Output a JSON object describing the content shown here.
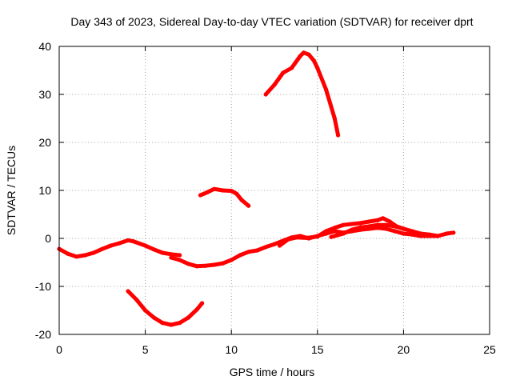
{
  "chart_data": {
    "type": "scatter",
    "title": "Day 343 of 2023, Sidereal Day-to-day VTEC variation (SDTVAR) for receiver dprt",
    "xlabel": "GPS time / hours",
    "ylabel": "SDTVAR / TECUs",
    "xlim": [
      0,
      25
    ],
    "ylim": [
      -20,
      40
    ],
    "xticks": [
      0,
      5,
      10,
      15,
      20,
      25
    ],
    "yticks": [
      -20,
      -10,
      0,
      10,
      20,
      30,
      40
    ],
    "grid": true,
    "legend": "none",
    "series_color": "#ff0000",
    "series": [
      {
        "name": "track-main-a",
        "points": [
          [
            0,
            -2.2
          ],
          [
            0.5,
            -3.2
          ],
          [
            1,
            -3.8
          ],
          [
            1.5,
            -3.5
          ],
          [
            2,
            -3
          ],
          [
            2.5,
            -2.2
          ],
          [
            3,
            -1.5
          ],
          [
            3.5,
            -1
          ],
          [
            4,
            -0.4
          ],
          [
            4.3,
            -0.6
          ],
          [
            5,
            -1.5
          ],
          [
            5.5,
            -2.3
          ],
          [
            6,
            -3
          ],
          [
            6.5,
            -3.3
          ],
          [
            7,
            -3.5
          ]
        ]
      },
      {
        "name": "track-main-b",
        "points": [
          [
            6.5,
            -4
          ],
          [
            7,
            -4.5
          ],
          [
            7.5,
            -5.3
          ],
          [
            8,
            -5.8
          ],
          [
            8.5,
            -5.7
          ],
          [
            9,
            -5.5
          ],
          [
            9.5,
            -5.2
          ],
          [
            10,
            -4.5
          ],
          [
            10.5,
            -3.5
          ],
          [
            11,
            -2.8
          ],
          [
            11.5,
            -2.5
          ],
          [
            12,
            -1.8
          ],
          [
            12.5,
            -1.2
          ],
          [
            13,
            -0.5
          ],
          [
            13.5,
            0.2
          ],
          [
            14,
            0.5
          ],
          [
            14.5,
            0
          ],
          [
            15,
            0.5
          ],
          [
            15.5,
            1
          ],
          [
            16,
            1.5
          ],
          [
            16.5,
            1.2
          ],
          [
            17,
            1.5
          ],
          [
            17.5,
            1.8
          ],
          [
            18,
            2
          ],
          [
            18.5,
            2.2
          ],
          [
            19,
            2
          ],
          [
            19.5,
            1.5
          ],
          [
            20,
            1
          ],
          [
            20.5,
            0.8
          ],
          [
            21,
            0.5
          ],
          [
            21.5,
            0.5
          ],
          [
            22,
            0.5
          ],
          [
            22.5,
            1
          ],
          [
            22.9,
            1.2
          ]
        ]
      },
      {
        "name": "track-main-c",
        "points": [
          [
            12.8,
            -1.5
          ],
          [
            13.3,
            -0.2
          ],
          [
            13.8,
            0.2
          ],
          [
            14.4,
            0.1
          ],
          [
            15,
            0.4
          ],
          [
            15.5,
            1.5
          ],
          [
            16,
            2.2
          ],
          [
            16.5,
            2.8
          ],
          [
            17,
            3
          ],
          [
            17.5,
            3.2
          ],
          [
            18,
            3.5
          ],
          [
            18.5,
            3.8
          ],
          [
            18.8,
            4.2
          ],
          [
            19.2,
            3.5
          ],
          [
            19.6,
            2.5
          ],
          [
            20,
            2
          ],
          [
            20.5,
            1.5
          ],
          [
            21,
            1
          ],
          [
            21.5,
            0.8
          ],
          [
            22,
            0.5
          ]
        ]
      },
      {
        "name": "track-main-d",
        "points": [
          [
            15.8,
            0.3
          ],
          [
            16.5,
            1
          ],
          [
            17,
            1.8
          ],
          [
            17.5,
            2.3
          ],
          [
            18,
            2.5
          ],
          [
            18.5,
            2.8
          ],
          [
            19,
            2.8
          ],
          [
            19.5,
            2.5
          ],
          [
            20,
            2
          ]
        ]
      },
      {
        "name": "track-upper-arc",
        "points": [
          [
            12,
            30
          ],
          [
            12.5,
            32
          ],
          [
            13,
            34.5
          ],
          [
            13.5,
            35.5
          ],
          [
            14,
            38
          ],
          [
            14.2,
            38.7
          ],
          [
            14.5,
            38.3
          ],
          [
            14.8,
            37
          ],
          [
            15,
            35.5
          ],
          [
            15.5,
            31
          ],
          [
            16,
            25
          ],
          [
            16.2,
            21.5
          ]
        ]
      },
      {
        "name": "track-mid-arc",
        "points": [
          [
            8.2,
            9
          ],
          [
            8.6,
            9.6
          ],
          [
            9,
            10.3
          ],
          [
            9.5,
            10
          ],
          [
            10,
            9.9
          ],
          [
            10.3,
            9.3
          ],
          [
            10.6,
            8
          ],
          [
            11,
            6.8
          ]
        ]
      },
      {
        "name": "track-lower-arc",
        "points": [
          [
            4,
            -11
          ],
          [
            4.5,
            -12.8
          ],
          [
            5,
            -15
          ],
          [
            5.5,
            -16.5
          ],
          [
            6,
            -17.6
          ],
          [
            6.5,
            -18
          ],
          [
            7,
            -17.6
          ],
          [
            7.5,
            -16.5
          ],
          [
            8,
            -14.8
          ],
          [
            8.3,
            -13.5
          ]
        ]
      }
    ]
  }
}
